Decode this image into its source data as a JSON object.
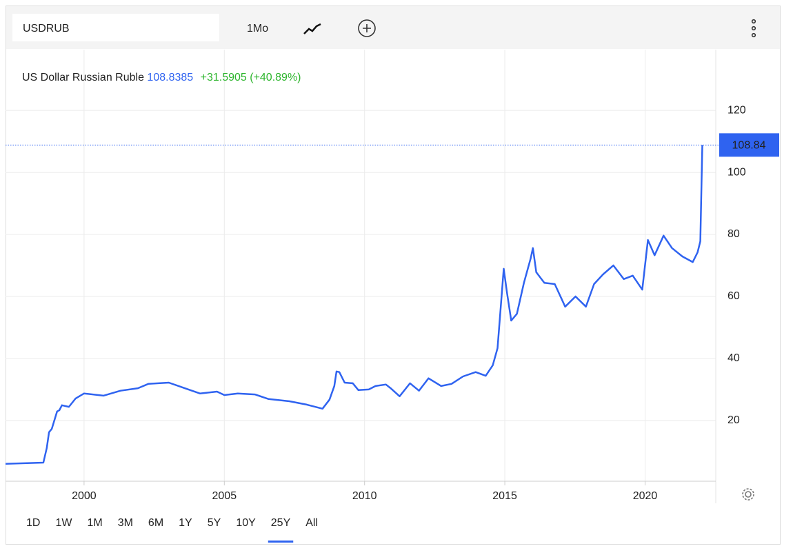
{
  "toolbar": {
    "symbol": "USDRUB",
    "interval": "1Mo"
  },
  "chart_data": {
    "type": "line",
    "title": "US Dollar Russian Ruble",
    "price": "108.8385",
    "change": "+31.5905 (+40.89%)",
    "last_price_label": "108.84",
    "xlim": [
      1997.2,
      2022.52
    ],
    "xticks": [
      2000,
      2005,
      2010,
      2015,
      2020
    ],
    "ylim": [
      0.4,
      139.6
    ],
    "yticks": [
      20,
      40,
      60,
      80,
      100,
      120
    ],
    "grid": true,
    "series": [
      {
        "name": "USDRUB",
        "color": "#2f63f0",
        "x": [
          1997.2,
          1998.55,
          1998.67,
          1998.75,
          1998.85,
          1999.04,
          1999.12,
          1999.21,
          1999.46,
          1999.7,
          2000.0,
          2000.69,
          2001.3,
          2001.92,
          2002.29,
          2003.02,
          2003.59,
          2004.13,
          2004.74,
          2005.0,
          2005.48,
          2006.09,
          2006.58,
          2007.32,
          2007.94,
          2008.5,
          2008.75,
          2008.92,
          2009.0,
          2009.1,
          2009.29,
          2009.58,
          2009.78,
          2010.15,
          2010.39,
          2010.76,
          2010.93,
          2011.25,
          2011.62,
          2011.94,
          2012.28,
          2012.73,
          2013.1,
          2013.51,
          2013.96,
          2014.32,
          2014.57,
          2014.74,
          2014.96,
          2015.08,
          2015.23,
          2015.43,
          2015.68,
          2015.92,
          2016.0,
          2016.12,
          2016.41,
          2016.78,
          2017.15,
          2017.52,
          2017.89,
          2018.18,
          2018.5,
          2018.87,
          2019.24,
          2019.56,
          2019.9,
          2020.1,
          2020.34,
          2020.66,
          2020.96,
          2021.33,
          2021.7,
          2021.87,
          2021.97,
          2022.04
        ],
        "values": [
          6.0,
          6.4,
          11.1,
          16.2,
          17.3,
          22.9,
          23.3,
          24.9,
          24.4,
          27.1,
          28.7,
          28.0,
          29.6,
          30.4,
          31.8,
          32.2,
          30.4,
          28.7,
          29.3,
          28.2,
          28.7,
          28.4,
          26.9,
          26.2,
          25.1,
          23.8,
          26.7,
          31.1,
          35.8,
          35.6,
          32.2,
          32.0,
          29.8,
          30.0,
          31.1,
          31.6,
          30.4,
          27.8,
          32.0,
          29.6,
          33.6,
          31.1,
          31.8,
          34.2,
          35.6,
          34.4,
          37.8,
          43.3,
          68.9,
          61.1,
          52.2,
          54.4,
          64.4,
          72.2,
          75.6,
          67.8,
          64.4,
          64.0,
          56.7,
          60.0,
          56.7,
          64.0,
          67.1,
          70.0,
          65.6,
          66.7,
          62.2,
          78.2,
          73.3,
          79.6,
          75.6,
          72.9,
          71.1,
          74.2,
          77.8,
          108.8385
        ]
      }
    ]
  },
  "ranges": [
    "1D",
    "1W",
    "1M",
    "3M",
    "6M",
    "1Y",
    "5Y",
    "10Y",
    "25Y",
    "All"
  ],
  "active_range_index": 8
}
